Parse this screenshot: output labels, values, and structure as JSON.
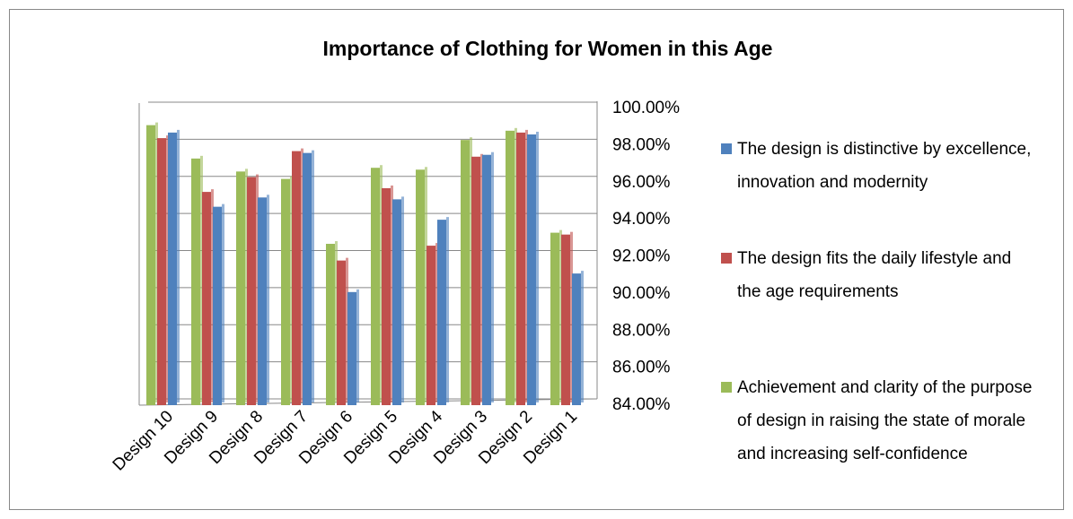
{
  "chart_data": {
    "type": "bar",
    "title": "Importance of Clothing for Women in this Age",
    "categories": [
      "Design 10",
      "Design 9",
      "Design 8",
      "Design 7",
      "Design 6",
      "Design 5",
      "Design 4",
      "Design 3",
      "Design 2",
      "Design 1"
    ],
    "series": [
      {
        "name": "The design is distinctive by excellence, innovation and modernity",
        "color": "#4f81bd",
        "values": [
          98.7,
          94.7,
          95.2,
          97.6,
          90.1,
          95.1,
          94.0,
          97.5,
          98.6,
          91.1
        ]
      },
      {
        "name": "The design fits the daily lifestyle and the age requirements",
        "color": "#c0504d",
        "values": [
          98.4,
          95.5,
          96.3,
          97.7,
          91.8,
          95.7,
          92.6,
          97.4,
          98.7,
          93.2
        ]
      },
      {
        "name": "Achievement and clarity of the purpose of design in raising the state of morale and increasing self-confidence",
        "color": "#9bbb59",
        "values": [
          99.1,
          97.3,
          96.6,
          96.2,
          92.7,
          96.8,
          96.7,
          98.3,
          98.8,
          93.3
        ]
      }
    ],
    "ylim": [
      84,
      100
    ],
    "yticks": [
      {
        "value": 84,
        "label": "84.00%"
      },
      {
        "value": 86,
        "label": "86.00%"
      },
      {
        "value": 88,
        "label": "88.00%"
      },
      {
        "value": 90,
        "label": "90.00%"
      },
      {
        "value": 92,
        "label": "92.00%"
      },
      {
        "value": 94,
        "label": "94.00%"
      },
      {
        "value": 96,
        "label": "96.00%"
      },
      {
        "value": 98,
        "label": "98.00%"
      },
      {
        "value": 100,
        "label": "100.00%"
      }
    ],
    "grid": true
  }
}
